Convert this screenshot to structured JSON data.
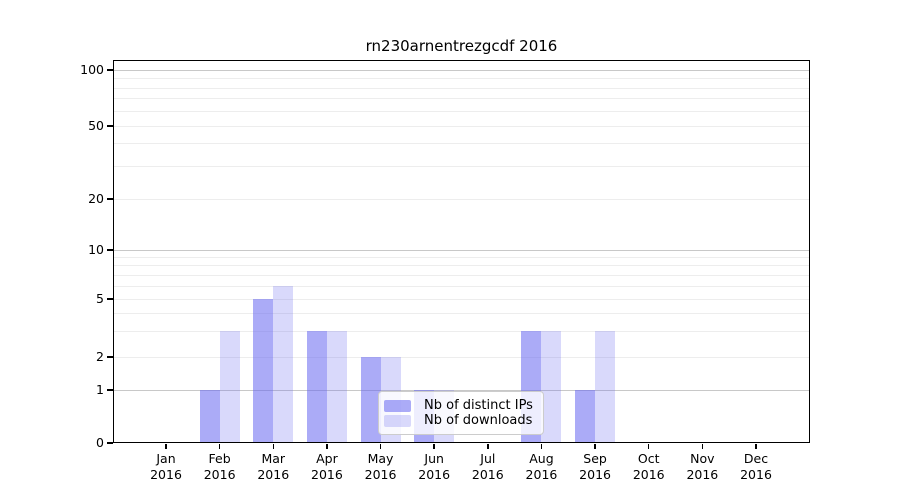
{
  "chart_data": {
    "type": "bar",
    "title": "rn230arnentrezgcdf 2016",
    "categories": [
      "Jan 2016",
      "Feb 2016",
      "Mar 2016",
      "Apr 2016",
      "May 2016",
      "Jun 2016",
      "Jul 2016",
      "Aug 2016",
      "Sep 2016",
      "Oct 2016",
      "Nov 2016",
      "Dec 2016"
    ],
    "series": [
      {
        "name": "Nb of distinct IPs",
        "values": [
          0,
          1,
          5,
          3,
          2,
          1,
          0,
          3,
          1,
          0,
          0,
          0
        ],
        "color": "rgba(102,102,240,0.55)",
        "color_hex_on_white": "#ab="
      },
      {
        "name": "Nb of downloads",
        "values": [
          0,
          3,
          6,
          3,
          2,
          1,
          0,
          3,
          3,
          0,
          0,
          0
        ],
        "color": "rgba(102,102,240,0.25)",
        "color_hex_on_white": "#d9d9fb"
      }
    ],
    "xlabel": "",
    "ylabel": "",
    "y_axis": {
      "scale": "log-like",
      "range": [
        0,
        100
      ],
      "tick_values": [
        0,
        1,
        2,
        5,
        10,
        20,
        50,
        100
      ],
      "tick_labels": [
        "0",
        "1",
        "2",
        "5",
        "10",
        "20",
        "50",
        "100"
      ],
      "major_gridline_values": [
        1,
        10,
        100
      ],
      "minor_gridline_values": [
        2,
        3,
        4,
        5,
        6,
        7,
        8,
        9,
        20,
        30,
        40,
        50,
        60,
        70,
        80,
        90
      ]
    },
    "grid": true,
    "legend_position": "lower center",
    "legend_items": [
      "Nb of distinct IPs",
      "Nb of downloads"
    ]
  },
  "colors": {
    "bar_distinct_ips": "rgba(102,102,240,0.55)",
    "bar_downloads": "rgba(102,102,240,0.25)",
    "major_gridline": "#c8c8c8",
    "minor_gridline": "#ededed",
    "axis_spine": "#000000",
    "legend_border": "#cccccc",
    "background": "#ffffff"
  }
}
